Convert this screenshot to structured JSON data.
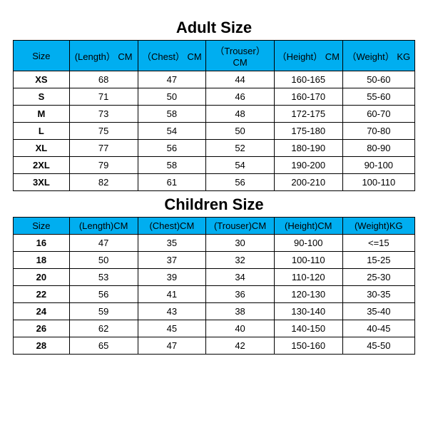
{
  "header_bg": "#00aef0",
  "border_color": "#000000",
  "title_font_size": 22,
  "cell_font_size": 13,
  "adult": {
    "title": "Adult Size",
    "columns": [
      "Size",
      "(Length） CM",
      "（Chest） CM",
      "（Trouser） CM",
      "（Height） CM",
      "（Weight） KG"
    ],
    "rows": [
      [
        "XS",
        "68",
        "47",
        "44",
        "160-165",
        "50-60"
      ],
      [
        "S",
        "71",
        "50",
        "46",
        "160-170",
        "55-60"
      ],
      [
        "M",
        "73",
        "58",
        "48",
        "172-175",
        "60-70"
      ],
      [
        "L",
        "75",
        "54",
        "50",
        "175-180",
        "70-80"
      ],
      [
        "XL",
        "77",
        "56",
        "52",
        "180-190",
        "80-90"
      ],
      [
        "2XL",
        "79",
        "58",
        "54",
        "190-200",
        "90-100"
      ],
      [
        "3XL",
        "82",
        "61",
        "56",
        "200-210",
        "100-110"
      ]
    ]
  },
  "children": {
    "title": "Children Size",
    "columns": [
      "Size",
      "(Length)CM",
      "(Chest)CM",
      "(Trouser)CM",
      "(Height)CM",
      "(Weight)KG"
    ],
    "rows": [
      [
        "16",
        "47",
        "35",
        "30",
        "90-100",
        "<=15"
      ],
      [
        "18",
        "50",
        "37",
        "32",
        "100-110",
        "15-25"
      ],
      [
        "20",
        "53",
        "39",
        "34",
        "110-120",
        "25-30"
      ],
      [
        "22",
        "56",
        "41",
        "36",
        "120-130",
        "30-35"
      ],
      [
        "24",
        "59",
        "43",
        "38",
        "130-140",
        "35-40"
      ],
      [
        "26",
        "62",
        "45",
        "40",
        "140-150",
        "40-45"
      ],
      [
        "28",
        "65",
        "47",
        "42",
        "150-160",
        "45-50"
      ]
    ]
  }
}
